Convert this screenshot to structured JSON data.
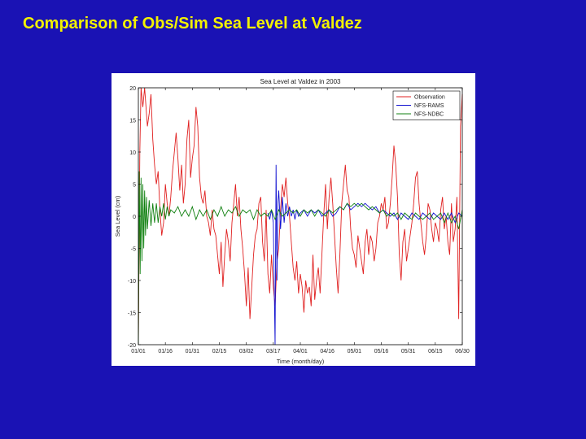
{
  "slide": {
    "title": "Comparison of Obs/Sim Sea Level at Valdez"
  },
  "chart_data": {
    "type": "line",
    "title": "Sea Level at Valdez in 2003",
    "xlabel": "Time (month/day)",
    "ylabel": "Sea Level (cm)",
    "x_ticks": [
      "01/01",
      "01/16",
      "01/31",
      "02/15",
      "03/02",
      "03/17",
      "04/01",
      "04/16",
      "05/01",
      "05/16",
      "05/31",
      "06/15",
      "06/30"
    ],
    "x_tick_days": [
      0,
      15,
      30,
      45,
      60,
      75,
      90,
      105,
      120,
      135,
      150,
      165,
      180
    ],
    "xlim_days": [
      0,
      180
    ],
    "y_ticks": [
      20,
      15,
      10,
      5,
      0,
      -5,
      -10,
      -15,
      -20
    ],
    "ylim": [
      -20,
      20
    ],
    "grid": false,
    "legend_position": "top-right",
    "series": [
      {
        "name": "Observation",
        "color": "#e02020",
        "x": [
          0,
          0.8,
          1.5,
          2.5,
          3.5,
          5,
          6,
          7,
          8,
          9,
          10,
          11,
          12,
          13,
          14,
          15,
          16,
          17,
          18,
          19,
          20,
          21,
          22,
          23,
          24,
          25,
          26,
          27,
          28,
          29,
          30,
          31,
          32,
          33,
          34,
          35,
          36,
          37,
          38,
          39,
          40,
          41,
          42,
          43,
          44,
          45,
          46,
          47,
          48,
          49,
          50,
          51,
          52,
          53,
          54,
          55,
          56,
          57,
          58,
          59,
          60,
          61,
          62,
          63,
          64,
          65,
          66,
          67,
          68,
          69,
          70,
          71,
          72,
          73,
          74,
          75,
          76,
          77,
          78,
          79,
          80,
          81,
          82,
          83,
          84,
          85,
          86,
          87,
          88,
          89,
          90,
          91,
          92,
          93,
          94,
          95,
          96,
          97,
          98,
          99,
          100,
          101,
          102,
          103,
          104,
          105,
          106,
          107,
          108,
          109,
          110,
          111,
          112,
          113,
          114,
          115,
          116,
          117,
          118,
          119,
          120,
          121,
          122,
          123,
          124,
          125,
          126,
          127,
          128,
          129,
          130,
          131,
          132,
          133,
          134,
          135,
          136,
          137,
          138,
          139,
          140,
          141,
          142,
          143,
          144,
          145,
          146,
          147,
          148,
          149,
          150,
          151,
          152,
          153,
          154,
          155,
          156,
          157,
          158,
          159,
          160,
          161,
          162,
          163,
          164,
          165,
          166,
          167,
          168,
          169,
          170,
          171,
          172,
          173,
          174,
          175,
          176,
          177,
          178,
          179,
          180
        ],
        "values": [
          -20,
          10,
          20,
          17,
          20,
          14,
          16,
          19,
          12,
          8,
          5,
          7,
          1,
          -3,
          -1,
          5,
          2,
          0,
          3,
          7,
          10,
          13,
          9,
          4,
          8,
          2,
          5,
          12,
          15,
          6,
          9,
          11,
          17,
          14,
          6,
          3,
          2,
          4,
          0,
          -1,
          -3,
          1,
          -2,
          -3,
          -6,
          -9,
          -4,
          -11,
          -6,
          -2,
          -4,
          -7,
          -1,
          2,
          5,
          0,
          3,
          -2,
          -5,
          -9,
          -14,
          -8,
          -16,
          -11,
          -6,
          -3,
          -2,
          2,
          3,
          -4,
          -7,
          1,
          -9,
          -12,
          -6,
          -11,
          -14,
          -7,
          -5,
          1,
          5,
          3,
          6,
          2,
          0,
          -4,
          -8,
          -10,
          -7,
          -12,
          -9,
          -11,
          -15,
          -10,
          -12,
          -11,
          -14,
          -6,
          -13,
          -10,
          -8,
          -12,
          -6,
          0,
          5,
          -2,
          3,
          6,
          2,
          -3,
          -8,
          -12,
          -6,
          2,
          5,
          8,
          4,
          3,
          -2,
          -5,
          -6,
          -8,
          -3,
          -5,
          -7,
          -9,
          -4,
          -2,
          -6,
          -3,
          -4,
          -7,
          -5,
          -1,
          0,
          2,
          1,
          3,
          -2,
          -1,
          2,
          6,
          11,
          8,
          3,
          -6,
          -10,
          -4,
          -2,
          -7,
          -5,
          -3,
          -1,
          2,
          6,
          7,
          2,
          -1,
          -4,
          -6,
          -3,
          2,
          1,
          -2,
          -4,
          -1,
          -2,
          -4,
          1,
          3,
          -2,
          0,
          -4,
          -6,
          2,
          -4,
          -2,
          3,
          -16,
          14,
          19
        ]
      },
      {
        "name": "NFS-RAMS",
        "color": "#1010d0",
        "x": [
          72,
          73,
          74,
          75,
          76,
          76.5,
          77,
          77.5,
          78,
          79,
          80,
          81,
          82,
          83,
          84,
          85,
          86,
          87,
          88,
          89,
          90,
          92,
          94,
          96,
          98,
          100,
          102,
          104,
          106,
          108,
          110,
          112,
          114,
          116,
          118,
          120,
          122,
          124,
          126,
          128,
          130,
          132,
          134,
          136,
          138,
          140,
          142,
          144,
          146,
          148,
          150,
          152,
          154,
          156,
          158,
          160,
          162,
          164,
          166,
          168,
          170,
          172,
          174,
          176,
          178,
          180
        ],
        "values": [
          0.5,
          -0.5,
          1,
          -1,
          -20,
          8,
          -10,
          2,
          4,
          -2,
          3,
          -1,
          2,
          0,
          1.5,
          0,
          1,
          -0.5,
          1,
          0,
          0.5,
          1,
          0,
          1,
          0.5,
          1,
          0,
          0.5,
          1,
          0,
          0.5,
          1.5,
          1,
          2,
          1,
          1.5,
          2,
          1.5,
          2,
          1.5,
          1,
          1.5,
          0.5,
          1,
          0.5,
          0,
          0.5,
          -0.5,
          0.5,
          0,
          -0.5,
          0.5,
          0,
          -0.5,
          0.5,
          0,
          -0.5,
          0.5,
          0,
          -0.5,
          0.5,
          -0.5,
          0.5,
          -1,
          0.5,
          0
        ]
      },
      {
        "name": "NFS-NDBC",
        "color": "#108010",
        "x": [
          0,
          0.5,
          1,
          1.5,
          2,
          2.5,
          3,
          3.5,
          4,
          4.5,
          5,
          6,
          7,
          8,
          9,
          10,
          11,
          12,
          13,
          14,
          15,
          16,
          17,
          18,
          20,
          22,
          24,
          26,
          28,
          30,
          32,
          34,
          36,
          38,
          40,
          42,
          44,
          46,
          48,
          50,
          52,
          54,
          56,
          58,
          60,
          62,
          64,
          66,
          68,
          70,
          72,
          74,
          76,
          78,
          80,
          82,
          84,
          86,
          88,
          90,
          92,
          94,
          96,
          98,
          100,
          102,
          104,
          106,
          108,
          110,
          112,
          114,
          116,
          118,
          120,
          122,
          124,
          126,
          128,
          130,
          132,
          134,
          136,
          138,
          140,
          142,
          144,
          146,
          148,
          150,
          152,
          154,
          156,
          158,
          160,
          162,
          164,
          166,
          168,
          170,
          172,
          174,
          176,
          178,
          180
        ],
        "values": [
          -20,
          7,
          -9,
          6,
          -7,
          5,
          -5,
          4,
          -3,
          3,
          -2,
          2.5,
          -1.5,
          2,
          -1,
          2,
          -1,
          1.5,
          0,
          2,
          -0.5,
          1.5,
          0,
          1,
          0.5,
          1.5,
          0,
          1,
          0,
          1.5,
          -0.5,
          1,
          0,
          1,
          -0.5,
          1,
          0,
          1.5,
          0,
          1,
          0.5,
          1.5,
          0,
          1,
          0.5,
          1,
          -0.5,
          1,
          0,
          0.5,
          0,
          1,
          -0.5,
          1,
          0,
          0.5,
          1,
          0.5,
          1,
          0,
          1,
          0.5,
          1,
          0,
          1,
          0.5,
          0,
          1,
          0.5,
          1,
          1.5,
          1,
          2,
          1.5,
          2,
          1.5,
          2,
          1.5,
          1,
          1.5,
          1,
          0.5,
          1,
          0,
          0.5,
          0,
          0.5,
          -0.5,
          0.5,
          0,
          -0.5,
          0.5,
          0,
          -0.5,
          0,
          0.5,
          -0.5,
          0,
          0.5,
          -1,
          0.5,
          -1,
          0,
          -2,
          1
        ]
      }
    ]
  }
}
